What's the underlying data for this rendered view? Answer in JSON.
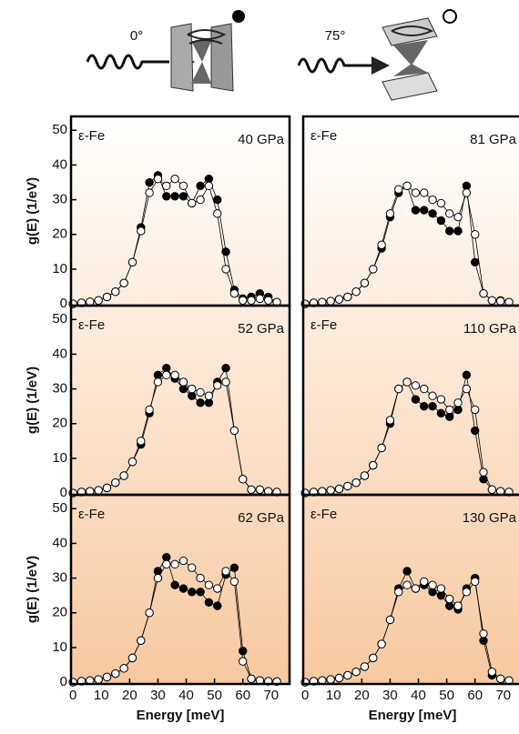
{
  "header": {
    "angles": [
      "0°",
      "75°"
    ]
  },
  "chart_data": [
    {
      "type": "scatter",
      "annotation": "ε-Fe",
      "pressure": "40 GPa",
      "ylabel": "g(E) (1/eV)",
      "x": [
        0,
        3,
        6,
        9,
        12,
        15,
        18,
        21,
        24,
        27,
        30,
        33,
        36,
        39,
        42,
        45,
        48,
        51,
        54,
        57,
        60,
        63,
        66,
        69,
        72
      ],
      "series": [
        {
          "marker": "filled",
          "color": "#000000",
          "values": [
            0,
            0.3,
            0.6,
            1,
            2,
            3.5,
            6,
            12,
            22,
            35,
            37,
            31,
            31,
            31,
            29,
            34,
            36,
            30,
            15,
            4,
            1.5,
            2,
            3,
            2,
            0.5
          ]
        },
        {
          "marker": "open",
          "color": "#000000",
          "values": [
            0,
            0.3,
            0.6,
            1,
            2,
            3.5,
            6,
            12,
            21,
            32,
            36,
            34,
            36,
            34,
            29,
            30,
            34,
            26,
            10,
            3,
            1,
            1,
            1.5,
            1,
            0.5
          ]
        }
      ],
      "xlim": [
        -0.7,
        76.5
      ],
      "ylim": [
        -0.5,
        54
      ],
      "yticks": [
        0,
        10,
        20,
        30,
        40,
        50
      ]
    },
    {
      "type": "scatter",
      "annotation": "ε-Fe",
      "pressure": "81 GPa",
      "x": [
        0,
        3,
        6,
        9,
        12,
        15,
        18,
        21,
        24,
        27,
        30,
        33,
        36,
        39,
        42,
        45,
        48,
        51,
        54,
        57,
        60,
        63,
        66,
        69,
        72
      ],
      "series": [
        {
          "marker": "filled",
          "color": "#000000",
          "values": [
            0,
            0.3,
            0.5,
            0.8,
            1.3,
            2,
            3.5,
            6,
            10,
            16,
            25,
            32,
            34,
            27,
            27,
            26,
            24,
            21,
            21,
            34,
            12,
            3,
            1,
            1,
            0.5
          ]
        },
        {
          "marker": "open",
          "color": "#000000",
          "values": [
            0,
            0.3,
            0.5,
            0.8,
            1.3,
            2,
            3.5,
            6,
            10,
            17,
            26,
            33,
            34,
            32,
            32,
            30,
            29,
            26,
            25,
            32,
            20,
            3,
            1,
            0.8,
            0.5
          ]
        }
      ],
      "xlim": [
        -0.7,
        76.5
      ],
      "ylim": [
        -0.5,
        54
      ]
    },
    {
      "type": "scatter",
      "annotation": "ε-Fe",
      "pressure": "52 GPa",
      "ylabel": "g(E) (1/eV)",
      "x": [
        0,
        3,
        6,
        9,
        12,
        15,
        18,
        21,
        24,
        27,
        30,
        33,
        36,
        39,
        42,
        45,
        48,
        51,
        54,
        57,
        60,
        63,
        66,
        69,
        72
      ],
      "series": [
        {
          "marker": "filled",
          "color": "#000000",
          "values": [
            0,
            0.3,
            0.5,
            0.8,
            1.5,
            3,
            5,
            9,
            14,
            23,
            34,
            36,
            33,
            30,
            28,
            26,
            26,
            32,
            36,
            18,
            4,
            1,
            1,
            0.5,
            0.3
          ]
        },
        {
          "marker": "open",
          "color": "#000000",
          "values": [
            0,
            0.3,
            0.5,
            0.8,
            1.5,
            3,
            5,
            9,
            15,
            24,
            32,
            34,
            34,
            32,
            30,
            29,
            28,
            31,
            32,
            18,
            4,
            1,
            1,
            0.5,
            0.3
          ]
        }
      ],
      "xlim": [
        -0.7,
        76.5
      ],
      "ylim": [
        -0.5,
        54
      ],
      "yticks": [
        0,
        10,
        20,
        30,
        40,
        50
      ]
    },
    {
      "type": "scatter",
      "annotation": "ε-Fe",
      "pressure": "110 GPa",
      "x": [
        0,
        3,
        6,
        9,
        12,
        15,
        18,
        21,
        24,
        27,
        30,
        33,
        36,
        39,
        42,
        45,
        48,
        51,
        54,
        57,
        60,
        63,
        66,
        69,
        72
      ],
      "series": [
        {
          "marker": "filled",
          "color": "#000000",
          "values": [
            0,
            0.3,
            0.5,
            0.8,
            1.2,
            2,
            3,
            5,
            8,
            13,
            20,
            30,
            32,
            27,
            25,
            25,
            23,
            22,
            24,
            34,
            18,
            4,
            1,
            0.5,
            0.3
          ]
        },
        {
          "marker": "open",
          "color": "#000000",
          "values": [
            0,
            0.3,
            0.5,
            0.8,
            1.2,
            2,
            3,
            5,
            8,
            13,
            21,
            30,
            32,
            31,
            30,
            28,
            27,
            24,
            26,
            30,
            24,
            6,
            1,
            0.5,
            0.3
          ]
        }
      ],
      "xlim": [
        -0.7,
        76.5
      ],
      "ylim": [
        -0.5,
        54
      ]
    },
    {
      "type": "scatter",
      "annotation": "ε-Fe",
      "pressure": "62 GPa",
      "ylabel": "g(E) (1/eV)",
      "xlabel": "Energy [meV]",
      "x": [
        0,
        3,
        6,
        9,
        12,
        15,
        18,
        21,
        24,
        27,
        30,
        33,
        36,
        39,
        42,
        45,
        48,
        51,
        54,
        57,
        60,
        63,
        66,
        69,
        72
      ],
      "series": [
        {
          "marker": "filled",
          "color": "#000000",
          "values": [
            0,
            0.3,
            0.5,
            0.8,
            1.5,
            2.5,
            4,
            7,
            12,
            20,
            32,
            36,
            28,
            27,
            26,
            26,
            23,
            22,
            31,
            33,
            9,
            1,
            0.5,
            0.3,
            0.2
          ]
        },
        {
          "marker": "open",
          "color": "#000000",
          "values": [
            0,
            0.3,
            0.5,
            0.8,
            1.5,
            2.5,
            4,
            7,
            12,
            20,
            30,
            34,
            34,
            35,
            33,
            30,
            28,
            27,
            32,
            29,
            6,
            1,
            0.5,
            0.3,
            0.2
          ]
        }
      ],
      "xlim": [
        -0.7,
        76.5
      ],
      "ylim": [
        -0.5,
        54
      ],
      "yticks": [
        0,
        10,
        20,
        30,
        40,
        50
      ],
      "xticks": [
        0,
        10,
        20,
        30,
        40,
        50,
        60,
        70
      ]
    },
    {
      "type": "scatter",
      "annotation": "ε-Fe",
      "pressure": "130 GPa",
      "xlabel": "Energy [meV]",
      "x": [
        0,
        3,
        6,
        9,
        12,
        15,
        18,
        21,
        24,
        27,
        30,
        33,
        36,
        39,
        42,
        45,
        48,
        51,
        54,
        57,
        60,
        63,
        66,
        69,
        72
      ],
      "series": [
        {
          "marker": "filled",
          "color": "#000000",
          "values": [
            0,
            0.3,
            0.5,
            0.8,
            1.2,
            2,
            3,
            4.5,
            7,
            11,
            18,
            27,
            32,
            27,
            28,
            26,
            25,
            22,
            21,
            27,
            30,
            12,
            2,
            1,
            0.5
          ]
        },
        {
          "marker": "open",
          "color": "#000000",
          "values": [
            0,
            0.3,
            0.5,
            0.8,
            1.2,
            2,
            3,
            4.5,
            7,
            11,
            18,
            26,
            28,
            27,
            29,
            28,
            27,
            24,
            22,
            26,
            29,
            14,
            3,
            1,
            0.5
          ]
        }
      ],
      "xlim": [
        -0.7,
        76.5
      ],
      "ylim": [
        -0.5,
        54
      ],
      "xticks": [
        0,
        10,
        20,
        30,
        40,
        50,
        60,
        70
      ]
    }
  ]
}
